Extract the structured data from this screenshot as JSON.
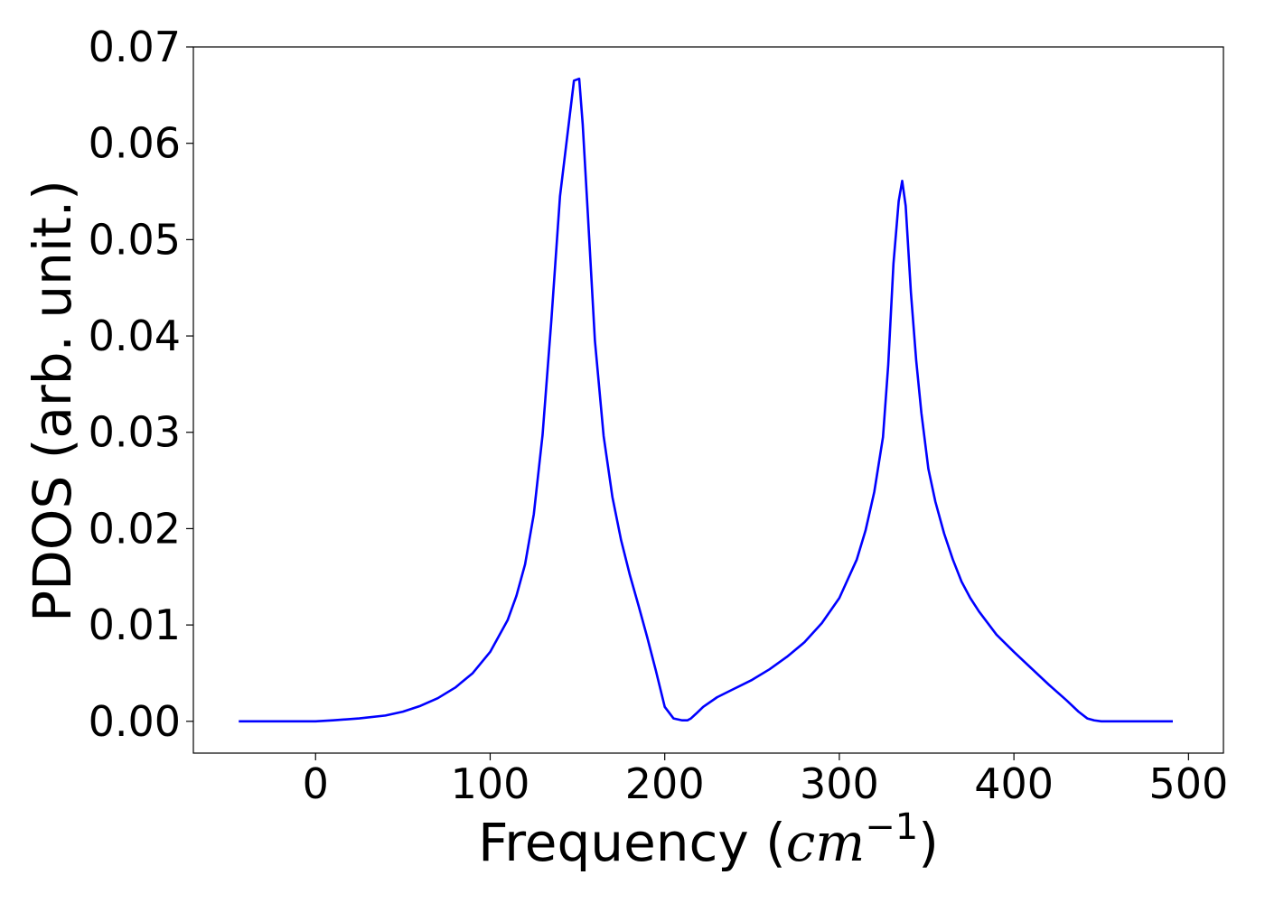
{
  "chart_data": {
    "type": "line",
    "xlabel": {
      "prefix": "Frequency (",
      "unit_base": "cm",
      "unit_exponent": "−1",
      "suffix": ")"
    },
    "ylabel": "PDOS (arb. unit.)",
    "xlim": [
      -70,
      520
    ],
    "ylim": [
      -0.0033,
      0.07
    ],
    "xticks": [
      0,
      100,
      200,
      300,
      400,
      500
    ],
    "xtick_labels": [
      "0",
      "100",
      "200",
      "300",
      "400",
      "500"
    ],
    "yticks": [
      0,
      0.01,
      0.02,
      0.03,
      0.04,
      0.05,
      0.06,
      0.07
    ],
    "ytick_labels": [
      "0.00",
      "0.01",
      "0.02",
      "0.03",
      "0.04",
      "0.05",
      "0.06",
      "0.07"
    ],
    "grid": false,
    "line_color": "#0000ff",
    "series": [
      {
        "x": [
          -44,
          0,
          10,
          25,
          40,
          50,
          60,
          70,
          80,
          90,
          100,
          110,
          115,
          120,
          125,
          130,
          135,
          140,
          145,
          148,
          151,
          153,
          156,
          160,
          165,
          170,
          175,
          180,
          185,
          190,
          195,
          200,
          205,
          210,
          213,
          215,
          218,
          222,
          230,
          240,
          250,
          260,
          270,
          280,
          290,
          300,
          310,
          315,
          320,
          325,
          328,
          331,
          334,
          336,
          338,
          341,
          344,
          347,
          351,
          355,
          360,
          365,
          370,
          375,
          380,
          390,
          400,
          410,
          420,
          430,
          437,
          442,
          446,
          450,
          455,
          460,
          470,
          480,
          491
        ],
        "y": [
          0,
          0,
          0.0001,
          0.0003,
          0.0006,
          0.001,
          0.0016,
          0.0024,
          0.0035,
          0.005,
          0.0072,
          0.0105,
          0.013,
          0.0163,
          0.0215,
          0.0297,
          0.0415,
          0.0545,
          0.062,
          0.0665,
          0.0667,
          0.062,
          0.0525,
          0.0395,
          0.0296,
          0.0233,
          0.0188,
          0.0152,
          0.012,
          0.0087,
          0.0052,
          0.0015,
          0.0003,
          0.0001,
          0.0001,
          0.0003,
          0.0008,
          0.0015,
          0.0025,
          0.0034,
          0.0043,
          0.0054,
          0.0067,
          0.0082,
          0.0102,
          0.0128,
          0.0168,
          0.0198,
          0.0238,
          0.0295,
          0.037,
          0.0475,
          0.054,
          0.0561,
          0.0535,
          0.0445,
          0.0375,
          0.032,
          0.0262,
          0.0228,
          0.0195,
          0.0168,
          0.0145,
          0.0128,
          0.0114,
          0.009,
          0.0072,
          0.0055,
          0.0038,
          0.0022,
          0.001,
          0.0003,
          0.0001,
          0,
          0,
          0,
          0,
          0,
          0
        ]
      }
    ]
  }
}
